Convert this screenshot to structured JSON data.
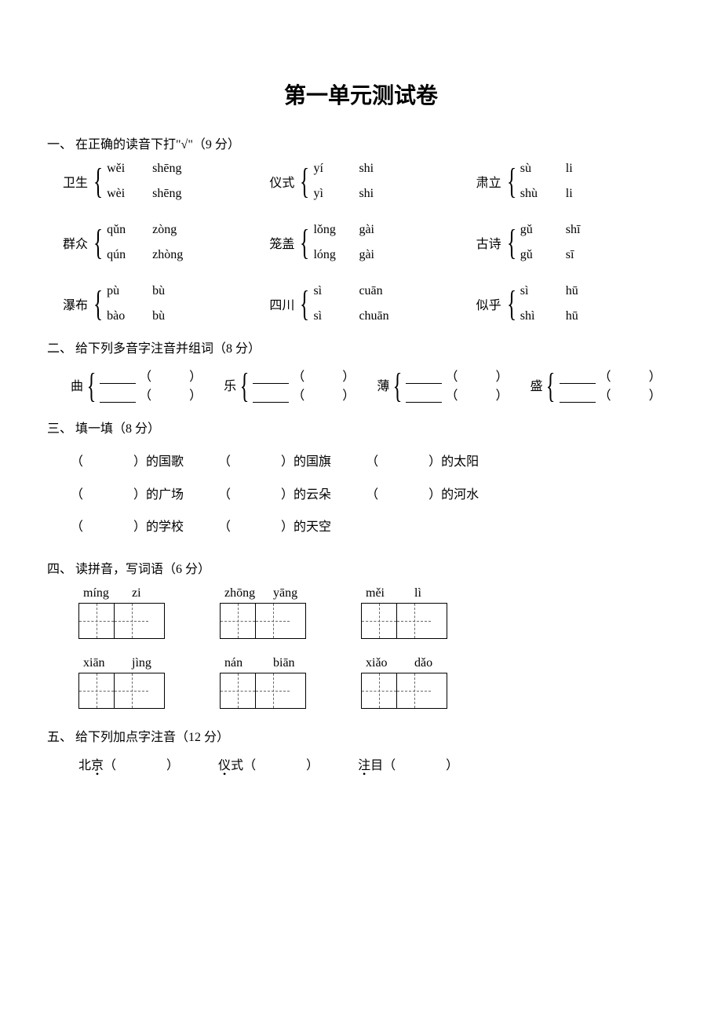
{
  "title": "第一单元测试卷",
  "sections": {
    "s1": {
      "heading": "一、 在正确的读音下打\"√\"（9 分）",
      "items": [
        {
          "word": "卫生",
          "a1": "wěi",
          "a2": "shēng",
          "b1": "wèi",
          "b2": "shēng"
        },
        {
          "word": "仪式",
          "a1": "yí",
          "a2": "shi",
          "b1": "yì",
          "b2": "shi"
        },
        {
          "word": "肃立",
          "a1": "sù",
          "a2": "li",
          "b1": "shù",
          "b2": "li"
        },
        {
          "word": "群众",
          "a1": "qǔn",
          "a2": "zòng",
          "b1": "qún",
          "b2": "zhòng"
        },
        {
          "word": "笼盖",
          "a1": "lǒng",
          "a2": "gài",
          "b1": "lóng",
          "b2": "gài"
        },
        {
          "word": "古诗",
          "a1": "gǔ",
          "a2": "shī",
          "b1": "gǔ",
          "b2": "sī"
        },
        {
          "word": "瀑布",
          "a1": "pù",
          "a2": "bù",
          "b1": "bào",
          "b2": "bù"
        },
        {
          "word": "四川",
          "a1": "sì",
          "a2": "cuān",
          "b1": "sì",
          "b2": "chuān"
        },
        {
          "word": "似乎",
          "a1": "sì",
          "a2": "hū",
          "b1": "shì",
          "b2": "hū"
        }
      ]
    },
    "s2": {
      "heading": "二、 给下列多音字注音并组词（8 分）",
      "chars": [
        "曲",
        "乐",
        "薄",
        "盛"
      ]
    },
    "s3": {
      "heading": "三、 填一填（8 分）",
      "items": [
        "的国歌",
        "的国旗",
        "的太阳",
        "的广场",
        "的云朵",
        "的河水",
        "的学校",
        "的天空"
      ]
    },
    "s4": {
      "heading": "四、 读拼音，写词语（6 分）",
      "row1": [
        {
          "p1": "míng",
          "p2": "zi"
        },
        {
          "p1": "zhōng",
          "p2": "yāng"
        },
        {
          "p1": "měi",
          "p2": "lì"
        }
      ],
      "row2": [
        {
          "p1": "xiān",
          "p2": "jìng"
        },
        {
          "p1": "nán",
          "p2": "biān"
        },
        {
          "p1": "xiǎo",
          "p2": "dǎo"
        }
      ]
    },
    "s5": {
      "heading": "五、 给下列加点字注音（12 分）",
      "items": [
        {
          "pre": "北",
          "dot": "京"
        },
        {
          "pre": "",
          "dot": "仪",
          "post": "式"
        },
        {
          "pre": "",
          "dot": "注",
          "post": "目"
        }
      ]
    }
  },
  "blank_paren": "（　　　）",
  "wide_paren": "（　　　　）"
}
